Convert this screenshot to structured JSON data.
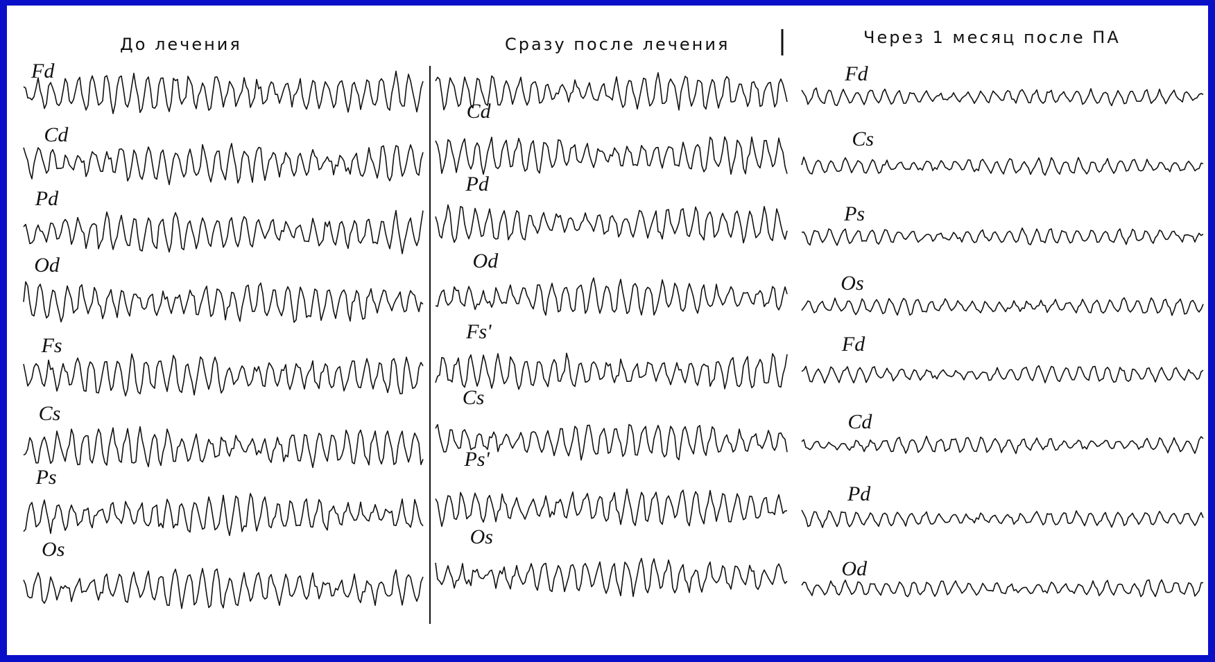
{
  "panels": [
    {
      "title": "До лечения",
      "channels": [
        "Fd",
        "Cd",
        "Pd",
        "Od",
        "Fs",
        "Cs",
        "Ps",
        "Os"
      ]
    },
    {
      "title": "Сразу после лечения",
      "channels": [
        "Cd",
        "Pd",
        "Od",
        "Fs'",
        "Cs",
        "Ps'",
        "Os"
      ]
    },
    {
      "title": "Через 1 месяц после ПА",
      "channels": [
        "Fd",
        "Cs",
        "Ps",
        "Os",
        "Fd",
        "Cd",
        "Pd",
        "Od"
      ]
    }
  ]
}
